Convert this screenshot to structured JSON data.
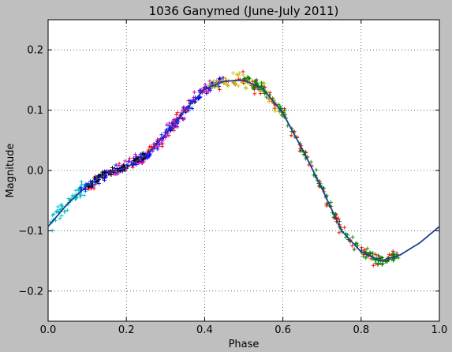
{
  "chart_data": {
    "type": "scatter",
    "title": "1036 Ganymed (June-July 2011)",
    "xlabel": "Phase",
    "ylabel": "Magnitude",
    "xlim": [
      0.0,
      1.0
    ],
    "ylim": [
      -0.25,
      0.25
    ],
    "y_inverted": false,
    "grid": true,
    "grid_style": "dotted",
    "x_ticks": [
      0.0,
      0.2,
      0.4,
      0.6,
      0.8,
      1.0
    ],
    "x_tick_labels": [
      "0.0",
      "0.2",
      "0.4",
      "0.6",
      "0.8",
      "1.0"
    ],
    "y_ticks": [
      0.2,
      0.1,
      0.0,
      -0.1,
      -0.2
    ],
    "y_tick_labels": [
      "0.2",
      "0.1",
      "0.0",
      "−0.1",
      "−0.2"
    ],
    "marker": "+",
    "colors": {
      "background": "#bfbfbf",
      "axes_face": "#ffffff",
      "fit_line": "#1f3f8f",
      "series": [
        "#00bfbf",
        "#ff0000",
        "#0000ff",
        "#bf00bf",
        "#bfbf00",
        "#008000",
        "#000000"
      ]
    },
    "fit_curve": {
      "x": [
        0.0,
        0.05,
        0.1,
        0.15,
        0.2,
        0.25,
        0.3,
        0.35,
        0.4,
        0.45,
        0.5,
        0.55,
        0.6,
        0.65,
        0.7,
        0.75,
        0.8,
        0.85,
        0.9,
        0.95,
        1.0
      ],
      "y": [
        -0.093,
        -0.055,
        -0.025,
        -0.005,
        0.005,
        0.025,
        0.06,
        0.1,
        0.135,
        0.148,
        0.15,
        0.135,
        0.095,
        0.035,
        -0.03,
        -0.1,
        -0.135,
        -0.15,
        -0.14,
        -0.12,
        -0.093
      ]
    },
    "series": [
      {
        "x_range": [
          0.0,
          0.12
        ],
        "spread": 0.012,
        "count": 60
      },
      {
        "x_range": [
          0.1,
          0.9
        ],
        "spread": 0.01,
        "count": 160
      },
      {
        "x_range": [
          0.08,
          0.45
        ],
        "spread": 0.007,
        "count": 180
      },
      {
        "x_range": [
          0.15,
          0.42
        ],
        "spread": 0.01,
        "count": 70
      },
      {
        "x_range": [
          0.4,
          0.6
        ],
        "spread": 0.01,
        "count": 60
      },
      {
        "x_range": [
          0.5,
          0.9
        ],
        "spread": 0.008,
        "count": 150
      },
      {
        "x_range": [
          0.1,
          0.25
        ],
        "spread": 0.006,
        "count": 50
      }
    ]
  }
}
